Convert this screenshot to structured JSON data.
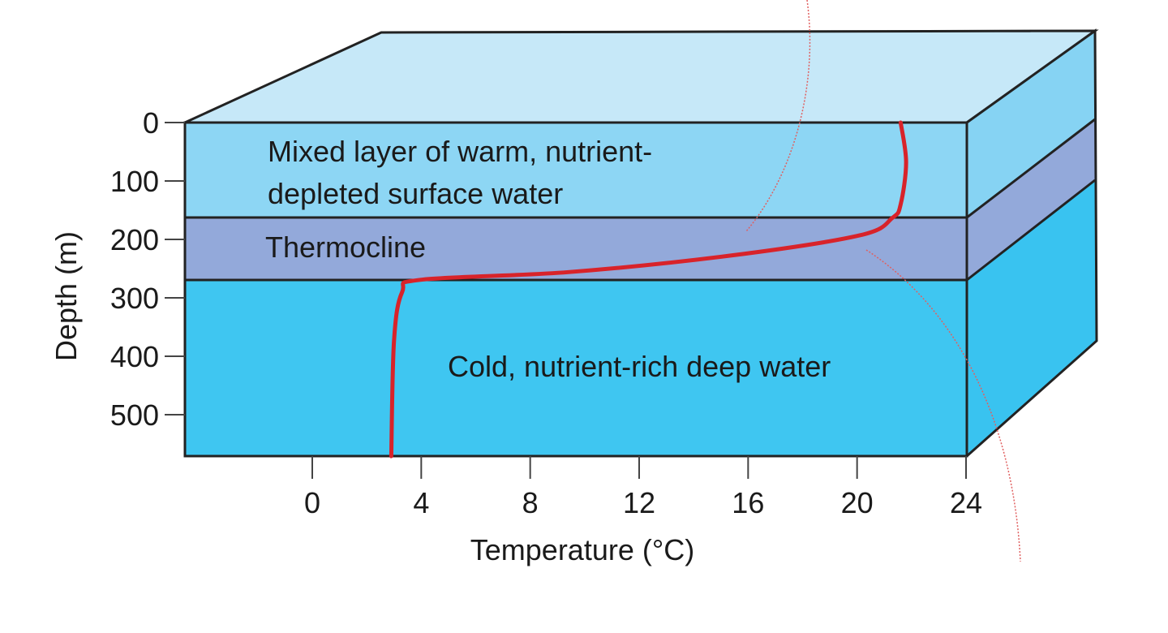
{
  "colors": {
    "top_face": "#c6e8f8",
    "mixed_layer": "#8dd6f4",
    "thermocline": "#93a9da",
    "deep_water": "#3fc6f1",
    "side_mixed": "#86d3f3",
    "side_deep": "#39c3f0",
    "curve": "#d8232a",
    "outline": "#222222"
  },
  "labels": {
    "mixed_line1": "Mixed layer of warm, nutrient-",
    "mixed_line2": "depleted surface water",
    "thermocline": "Thermocline",
    "deep": "Cold, nutrient-rich deep water"
  },
  "chart_data": {
    "type": "line",
    "xlabel": "Temperature (°C)",
    "ylabel": "Depth (m)",
    "x_ticks": [
      "0",
      "4",
      "8",
      "12",
      "16",
      "20",
      "24"
    ],
    "y_ticks": [
      "0",
      "100",
      "200",
      "300",
      "400",
      "500"
    ],
    "xlim": [
      0,
      24
    ],
    "ylim": [
      0,
      570
    ],
    "y_inverted": true,
    "layer_boundaries_m": [
      163,
      270
    ],
    "series": [
      {
        "points": [
          {
            "t": 21.6,
            "d": 0
          },
          {
            "t": 21.8,
            "d": 68
          },
          {
            "t": 21.6,
            "d": 140
          },
          {
            "t": 21.3,
            "d": 163
          },
          {
            "t": 20.1,
            "d": 193
          },
          {
            "t": 15.3,
            "d": 228
          },
          {
            "t": 9.4,
            "d": 256
          },
          {
            "t": 4.0,
            "d": 269
          },
          {
            "t": 3.3,
            "d": 290
          },
          {
            "t": 3.0,
            "d": 374
          },
          {
            "t": 2.9,
            "d": 571
          }
        ]
      }
    ]
  }
}
